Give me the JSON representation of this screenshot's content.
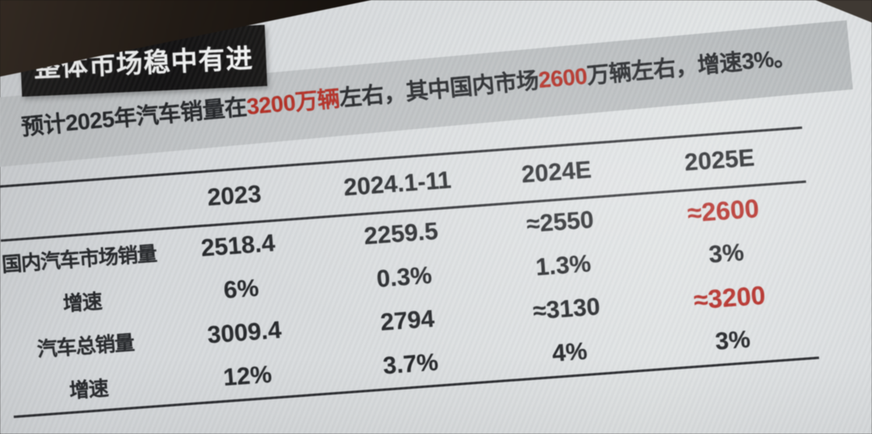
{
  "slide": {
    "title": "整体市场稳中有进",
    "subtitle": {
      "full_text": "预计2025年汽车销量在3200万辆左右，其中国内市场2600万辆左右，增速3%。",
      "parts": [
        {
          "text": "预计2025年汽车销量在",
          "highlighted": false
        },
        {
          "text": "3200万辆",
          "highlighted": true
        },
        {
          "text": "左右，其中国内市场",
          "highlighted": false
        },
        {
          "text": "2600",
          "highlighted": true
        },
        {
          "text": "万辆左右，增速3%。",
          "highlighted": false
        }
      ]
    }
  },
  "chart_data": {
    "type": "table",
    "title": "整体市场稳中有进",
    "columns": [
      "",
      "2023",
      "2024.1-11",
      "2024E",
      "2025E"
    ],
    "rows": [
      {
        "label": "国内汽车市场销量",
        "values": [
          "2518.4",
          "2259.5",
          "≈2550",
          "≈2600"
        ]
      },
      {
        "label": "增速",
        "values": [
          "6%",
          "0.3%",
          "1.3%",
          "3%"
        ]
      },
      {
        "label": "汽车总销量",
        "values": [
          "3009.4",
          "2794",
          "≈3130",
          "≈3200"
        ]
      },
      {
        "label": "增速",
        "values": [
          "12%",
          "3.7%",
          "4%",
          "3%"
        ]
      }
    ],
    "highlighted_cells": [
      {
        "row": 0,
        "column": "2025E",
        "value": "≈2600",
        "color": "#b52a24"
      },
      {
        "row": 2,
        "column": "2025E",
        "value": "≈3200",
        "color": "#b52a24"
      }
    ],
    "grid": "horizontal rules only (above header, below header, below last row)"
  },
  "colors": {
    "accent_red": "#b52a24",
    "slide_background": "#d8dbdd",
    "title_box_background": "#121112",
    "title_text": "#f3f4f4",
    "subtitle_band_background": "#babec0",
    "table_text": "#232528",
    "table_rule": "#27282c",
    "photo_dark_corner": "#2b231d"
  }
}
